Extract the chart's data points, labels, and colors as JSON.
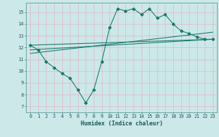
{
  "xlabel": "Humidex (Indice chaleur)",
  "bg_color": "#cce8e8",
  "grid_color": "#ddbbcc",
  "line_color": "#1a7a6e",
  "xlim": [
    -0.5,
    23.5
  ],
  "ylim": [
    6.5,
    15.8
  ],
  "xticks": [
    0,
    1,
    2,
    3,
    4,
    5,
    6,
    7,
    8,
    9,
    10,
    11,
    12,
    13,
    14,
    15,
    16,
    17,
    18,
    19,
    20,
    21,
    22,
    23
  ],
  "yticks": [
    7,
    8,
    9,
    10,
    11,
    12,
    13,
    14,
    15
  ],
  "zigzag_x": [
    0,
    1,
    2,
    3,
    4,
    5,
    6,
    7,
    8,
    9,
    10,
    11,
    12,
    13,
    14,
    15,
    16,
    17,
    18,
    19,
    20,
    21,
    22,
    23
  ],
  "zigzag_y": [
    12.2,
    11.8,
    10.8,
    10.3,
    9.8,
    9.4,
    8.4,
    7.3,
    8.4,
    10.8,
    13.7,
    15.3,
    15.1,
    15.3,
    14.8,
    15.3,
    14.5,
    14.8,
    14.0,
    13.4,
    13.2,
    12.9,
    12.7,
    12.7
  ],
  "line1_x": [
    0,
    23
  ],
  "line1_y": [
    11.8,
    12.7
  ],
  "line2_x": [
    0,
    23
  ],
  "line2_y": [
    11.5,
    13.3
  ],
  "line3_x": [
    0,
    23
  ],
  "line3_y": [
    12.2,
    12.7
  ],
  "tick_fontsize": 5.0,
  "xlabel_fontsize": 6.0
}
